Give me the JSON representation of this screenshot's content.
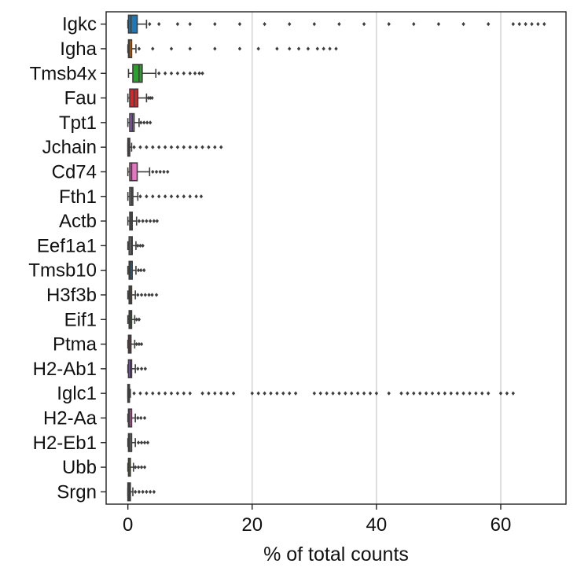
{
  "chart_data": {
    "type": "box",
    "title": "",
    "xlabel": "% of total counts",
    "ylabel": "",
    "xlim": [
      -3.5,
      70.5
    ],
    "xticks": [
      0,
      20,
      40,
      60
    ],
    "grid": "vertical",
    "legend": "none",
    "categories": [
      "Igkc",
      "Igha",
      "Tmsb4x",
      "Fau",
      "Tpt1",
      "Jchain",
      "Cd74",
      "Fth1",
      "Actb",
      "Eef1a1",
      "Tmsb10",
      "H3f3b",
      "Eif1",
      "Ptma",
      "H2-Ab1",
      "Iglc1",
      "H2-Aa",
      "H2-Eb1",
      "Ubb",
      "Srgn"
    ],
    "series": [
      {
        "category": "Igkc",
        "color": "#1f77b4",
        "box": [
          0.1,
          0.5,
          1.5
        ],
        "whiskers": [
          0.0,
          3.0
        ],
        "outliers": [
          3.5,
          5,
          8,
          10,
          14,
          18,
          22,
          26,
          30,
          34,
          38,
          42,
          46,
          50,
          54,
          58,
          62,
          63,
          64,
          65,
          66,
          67
        ]
      },
      {
        "category": "Igha",
        "color": "#ff7f0e",
        "box": [
          0.1,
          0.3,
          0.6
        ],
        "whiskers": [
          0.0,
          1.3
        ],
        "outliers": [
          1.8,
          4,
          7,
          10,
          14,
          18,
          21,
          24,
          26,
          27.5,
          29,
          30.5,
          31.5,
          32.5,
          33.5
        ]
      },
      {
        "category": "Tmsb4x",
        "color": "#2ca02c",
        "box": [
          0.8,
          1.8,
          2.3
        ],
        "whiskers": [
          0.1,
          4.5
        ],
        "outliers": [
          5,
          6,
          7,
          8,
          9,
          10,
          10.8,
          11.5,
          12
        ]
      },
      {
        "category": "Fau",
        "color": "#d62728",
        "box": [
          0.3,
          1.0,
          1.6
        ],
        "whiskers": [
          0.0,
          3.0
        ],
        "outliers": [
          3.3,
          3.6,
          3.9
        ]
      },
      {
        "category": "Tpt1",
        "color": "#9467bd",
        "box": [
          0.3,
          0.7,
          1.0
        ],
        "whiskers": [
          0.0,
          1.8
        ],
        "outliers": [
          2.1,
          2.6,
          3.1,
          3.6
        ]
      },
      {
        "category": "Jchain",
        "color": "#8c564b",
        "box": [
          0.0,
          0.1,
          0.3
        ],
        "whiskers": [
          0.0,
          0.6
        ],
        "outliers": [
          1,
          2,
          3,
          4,
          5,
          6,
          7,
          8,
          9,
          10,
          11,
          12,
          13,
          14,
          15
        ]
      },
      {
        "category": "Cd74",
        "color": "#e377c2",
        "box": [
          0.3,
          0.6,
          1.5
        ],
        "whiskers": [
          0.0,
          3.5
        ],
        "outliers": [
          4.0,
          4.6,
          5.2,
          5.8,
          6.4
        ]
      },
      {
        "category": "Fth1",
        "color": "#7f7f7f",
        "box": [
          0.3,
          0.6,
          0.8
        ],
        "whiskers": [
          0.0,
          1.6
        ],
        "outliers": [
          2,
          3,
          4,
          5,
          6,
          7,
          8,
          9,
          10,
          11,
          11.8
        ]
      },
      {
        "category": "Actb",
        "color": "#bcbd22",
        "box": [
          0.3,
          0.5,
          0.7
        ],
        "whiskers": [
          0.0,
          1.4
        ],
        "outliers": [
          1.8,
          2.4,
          3.0,
          3.6,
          4.2,
          4.7
        ]
      },
      {
        "category": "Eef1a1",
        "color": "#17becf",
        "box": [
          0.2,
          0.5,
          0.7
        ],
        "whiskers": [
          0.0,
          1.3
        ],
        "outliers": [
          1.6,
          2.0,
          2.4
        ]
      },
      {
        "category": "Tmsb10",
        "color": "#1f77b4",
        "box": [
          0.2,
          0.4,
          0.7
        ],
        "whiskers": [
          0.0,
          1.3
        ],
        "outliers": [
          1.7,
          2.1,
          2.6
        ]
      },
      {
        "category": "H3f3b",
        "color": "#ff7f0e",
        "box": [
          0.2,
          0.4,
          0.6
        ],
        "whiskers": [
          0.0,
          1.2
        ],
        "outliers": [
          1.6,
          2.2,
          2.8,
          3.4,
          3.9,
          4.6
        ]
      },
      {
        "category": "Eif1",
        "color": "#2ca02c",
        "box": [
          0.2,
          0.4,
          0.6
        ],
        "whiskers": [
          0.0,
          1.1
        ],
        "outliers": [
          1.4,
          1.8
        ]
      },
      {
        "category": "Ptma",
        "color": "#d62728",
        "box": [
          0.1,
          0.3,
          0.5
        ],
        "whiskers": [
          0.0,
          1.1
        ],
        "outliers": [
          1.4,
          1.8,
          2.2
        ]
      },
      {
        "category": "H2-Ab1",
        "color": "#9467bd",
        "box": [
          0.1,
          0.4,
          0.6
        ],
        "whiskers": [
          0.0,
          1.2
        ],
        "outliers": [
          1.6,
          2.2,
          2.8
        ]
      },
      {
        "category": "Iglc1",
        "color": "#8c564b",
        "box": [
          0.0,
          0.1,
          0.2
        ],
        "whiskers": [
          0.0,
          0.4
        ],
        "outliers": [
          1,
          2,
          3,
          4,
          5,
          6,
          7,
          8,
          9,
          10,
          12,
          13,
          14,
          15,
          16,
          17,
          20,
          21,
          22,
          23,
          24,
          25,
          26,
          27,
          30,
          31,
          32,
          33,
          34,
          35,
          36,
          37,
          38,
          39,
          40,
          42,
          44,
          45,
          46,
          47,
          48,
          49,
          50,
          51,
          52,
          53,
          54,
          55,
          56,
          57,
          58,
          60,
          61,
          62
        ]
      },
      {
        "category": "H2-Aa",
        "color": "#e377c2",
        "box": [
          0.1,
          0.3,
          0.6
        ],
        "whiskers": [
          0.0,
          1.2
        ],
        "outliers": [
          1.6,
          2.1,
          2.7
        ]
      },
      {
        "category": "H2-Eb1",
        "color": "#7f7f7f",
        "box": [
          0.1,
          0.3,
          0.6
        ],
        "whiskers": [
          0.0,
          1.2
        ],
        "outliers": [
          1.7,
          2.2,
          2.7,
          3.2
        ]
      },
      {
        "category": "Ubb",
        "color": "#bcbd22",
        "box": [
          0.1,
          0.3,
          0.4
        ],
        "whiskers": [
          0.0,
          0.9
        ],
        "outliers": [
          1.2,
          1.7,
          2.2,
          2.7
        ]
      },
      {
        "category": "Srgn",
        "color": "#17becf",
        "box": [
          0.0,
          0.2,
          0.4
        ],
        "whiskers": [
          0.0,
          0.8
        ],
        "outliers": [
          1.2,
          1.8,
          2.4,
          3.0,
          3.6,
          4.2
        ]
      }
    ]
  }
}
